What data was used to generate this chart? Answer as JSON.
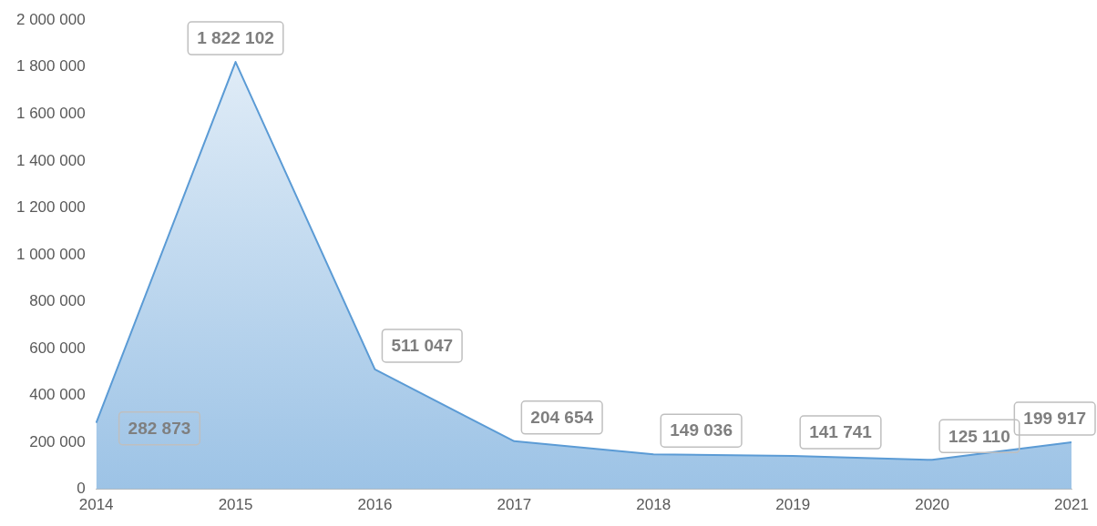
{
  "chart_data": {
    "type": "area",
    "categories": [
      "2014",
      "2015",
      "2016",
      "2017",
      "2018",
      "2019",
      "2020",
      "2021"
    ],
    "series": [
      {
        "color": "#5b9bd5",
        "values": [
          282873,
          1822102,
          511047,
          204654,
          149036,
          141741,
          125110,
          199917
        ],
        "value_labels": [
          "282 873",
          "1 822 102",
          "511 047",
          "204 654",
          "149 036",
          "141 741",
          "125 110",
          "199 917"
        ]
      }
    ],
    "ylim": [
      0,
      2000000
    ],
    "yticks": [
      {
        "value": 0,
        "label": "0"
      },
      {
        "value": 200000,
        "label": "200 000"
      },
      {
        "value": 400000,
        "label": "400 000"
      },
      {
        "value": 600000,
        "label": "600 000"
      },
      {
        "value": 800000,
        "label": "800 000"
      },
      {
        "value": 1000000,
        "label": "1 000 000"
      },
      {
        "value": 1200000,
        "label": "1 200 000"
      },
      {
        "value": 1400000,
        "label": "1 400 000"
      },
      {
        "value": 1600000,
        "label": "1 600 000"
      },
      {
        "value": 1800000,
        "label": "1 800 000"
      },
      {
        "value": 2000000,
        "label": "2 000 000"
      }
    ],
    "grid": false,
    "legend": false
  }
}
